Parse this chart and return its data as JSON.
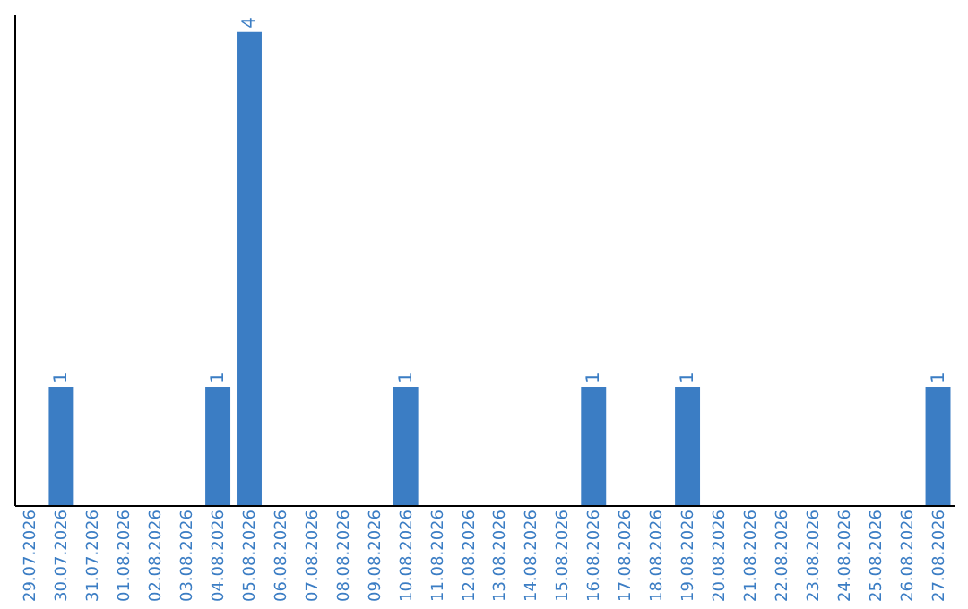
{
  "chart_data": {
    "type": "bar",
    "categories": [
      "29.07.2026",
      "30.07.2026",
      "31.07.2026",
      "01.08.2026",
      "02.08.2026",
      "03.08.2026",
      "04.08.2026",
      "05.08.2026",
      "06.08.2026",
      "07.08.2026",
      "08.08.2026",
      "09.08.2026",
      "10.08.2026",
      "11.08.2026",
      "12.08.2026",
      "13.08.2026",
      "14.08.2026",
      "15.08.2026",
      "16.08.2026",
      "17.08.2026",
      "18.08.2026",
      "19.08.2026",
      "20.08.2026",
      "21.08.2026",
      "22.08.2026",
      "23.08.2026",
      "24.08.2026",
      "25.08.2026",
      "26.08.2026",
      "27.08.2026"
    ],
    "values": [
      0,
      1,
      0,
      0,
      0,
      0,
      1,
      4,
      0,
      0,
      0,
      0,
      1,
      0,
      0,
      0,
      0,
      0,
      1,
      0,
      0,
      1,
      0,
      0,
      0,
      0,
      0,
      0,
      0,
      1
    ],
    "value_labels": [
      null,
      "1",
      null,
      null,
      null,
      null,
      "1",
      "4",
      null,
      null,
      null,
      null,
      "1",
      null,
      null,
      null,
      null,
      null,
      "1",
      null,
      null,
      "1",
      null,
      null,
      null,
      null,
      null,
      null,
      null,
      "1"
    ],
    "color": "#3b7dc4",
    "ylim": [
      0,
      4.15
    ],
    "tick_labels": "x",
    "grid": false
  }
}
